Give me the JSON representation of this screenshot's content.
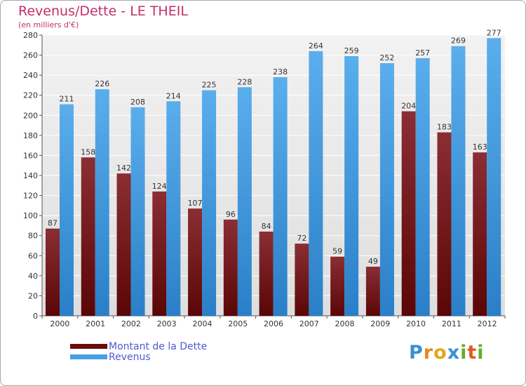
{
  "chart_data": {
    "type": "bar",
    "title": "Revenus/Dette - LE THEIL",
    "subtitle": "(en milliers d'€)",
    "xlabel": "",
    "ylabel": "",
    "ylim": [
      0,
      280
    ],
    "yticks": [
      "0",
      "20",
      "40",
      "60",
      "80",
      "100",
      "120",
      "140",
      "160",
      "180",
      "200",
      "220",
      "240",
      "260",
      "280"
    ],
    "categories": [
      "2000",
      "2001",
      "2002",
      "2003",
      "2004",
      "2005",
      "2006",
      "2007",
      "2008",
      "2009",
      "2010",
      "2011",
      "2012"
    ],
    "series": [
      {
        "name": "Montant de la Dette",
        "color": "#7a1a1a",
        "values": [
          87,
          158,
          142,
          124,
          107,
          96,
          84,
          72,
          59,
          49,
          204,
          183,
          163
        ],
        "labels": [
          "87",
          "158",
          "142",
          "124",
          "107",
          "96",
          "84",
          "72",
          "59",
          "49",
          "204",
          "183",
          "163"
        ]
      },
      {
        "name": "Revenus",
        "color": "#4aa0e0",
        "values": [
          211,
          226,
          208,
          214,
          225,
          228,
          238,
          264,
          259,
          252,
          257,
          269,
          277
        ],
        "labels": [
          "211",
          "226",
          "208",
          "214",
          "225",
          "228",
          "238",
          "264",
          "259",
          "252",
          "257",
          "269",
          "277"
        ]
      }
    ],
    "grid": true,
    "legend_position": "bottom-left"
  },
  "legend": [
    {
      "label": "Montant de la Dette",
      "color": "#6a0c0c"
    },
    {
      "label": "Revenus",
      "color": "#4aa0e0"
    }
  ],
  "logo": {
    "letters": [
      "P",
      "r",
      "o",
      "x",
      "i",
      "t",
      "i"
    ],
    "colors": [
      "#3a8fd8",
      "#e08a1e",
      "#e0a81e",
      "#3a8fd8",
      "#6aaa2a",
      "#e05a1e",
      "#6aaa2a"
    ]
  }
}
